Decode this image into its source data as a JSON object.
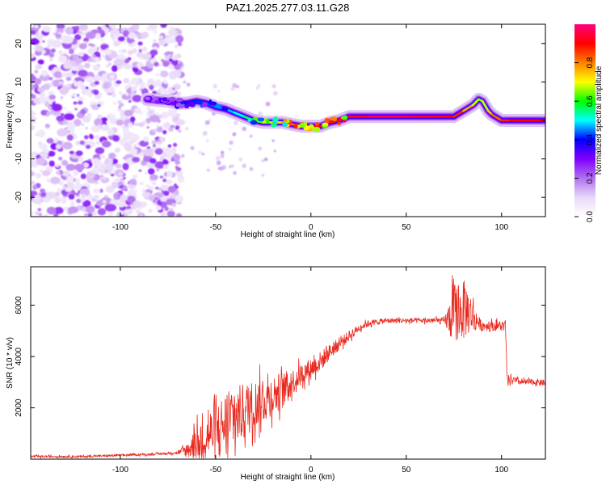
{
  "figure_title": "PAZ1.2025.277.03.11.G28",
  "chart_data": [
    {
      "type": "heatmap",
      "title": "PAZ1.2025.277.03.11.G28",
      "xlabel": "Height of straight line (km)",
      "ylabel": "Frequency (Hz)",
      "xlim": [
        -147,
        123
      ],
      "ylim": [
        -25,
        25
      ],
      "xticks": [
        -100,
        -50,
        0,
        50,
        100
      ],
      "xtick_labels": [
        "-100",
        "-50",
        "0",
        "50",
        "100"
      ],
      "yticks": [
        -20,
        -10,
        0,
        10,
        20
      ],
      "ytick_labels": [
        "-20",
        "-10",
        "0",
        "10",
        "20"
      ],
      "noise_region_x": [
        -147,
        -68
      ],
      "ridge": {
        "x": [
          -86,
          -80,
          -75,
          -70,
          -65,
          -60,
          -55,
          -50,
          -45,
          -40,
          -35,
          -30,
          -25,
          -20,
          -15,
          -10,
          -5,
          0,
          5,
          10,
          15,
          20,
          30,
          40,
          50,
          60,
          70,
          75,
          80,
          85,
          88,
          90,
          93,
          95,
          100,
          105,
          110,
          115,
          123
        ],
        "freq": [
          5.5,
          5.2,
          5.0,
          4.5,
          4.5,
          5.0,
          4.5,
          3.5,
          3.0,
          2.0,
          1.0,
          0.0,
          -0.5,
          -0.5,
          -0.5,
          -1.0,
          -1.5,
          -1.5,
          -1.5,
          -0.5,
          0.0,
          1.0,
          1.0,
          1.0,
          1.0,
          1.0,
          1.0,
          1.0,
          2.5,
          4.0,
          5.5,
          5.0,
          2.5,
          1.5,
          0.0,
          0.0,
          0.0,
          0.0,
          0.0
        ],
        "amplitude": [
          0.3,
          0.32,
          0.35,
          0.35,
          0.4,
          0.42,
          0.42,
          0.45,
          0.45,
          0.5,
          0.52,
          0.6,
          0.65,
          0.7,
          0.75,
          0.8,
          0.85,
          0.9,
          0.92,
          0.9,
          0.88,
          0.9,
          0.95,
          0.95,
          0.95,
          0.93,
          0.92,
          0.9,
          0.85,
          0.7,
          0.65,
          0.65,
          0.7,
          0.8,
          0.85,
          0.9,
          0.9,
          0.9,
          0.9
        ]
      }
    },
    {
      "type": "colorbar",
      "label": "Normalized spectral amplitude",
      "range": [
        0,
        1
      ],
      "ticks": [
        0.0,
        0.2,
        0.4,
        0.6,
        0.8
      ],
      "tick_labels": [
        "0.0",
        "0.2",
        "0.4",
        "0.6",
        "0.8"
      ],
      "colors": [
        "#ffffff",
        "#e8d8f8",
        "#b070f0",
        "#8000ff",
        "#0000ff",
        "#00ffff",
        "#00ff00",
        "#ffff00",
        "#ff8000",
        "#ff0000",
        "#ff0080"
      ]
    },
    {
      "type": "line",
      "xlabel": "Height of straight line (km)",
      "ylabel": "SNR (10 * v/v)",
      "xlim": [
        -147,
        123
      ],
      "ylim": [
        0,
        7500
      ],
      "xticks": [
        -100,
        -50,
        0,
        50,
        100
      ],
      "xtick_labels": [
        "-100",
        "-50",
        "0",
        "50",
        "100"
      ],
      "yticks": [
        2000,
        4000,
        6000
      ],
      "ytick_labels": [
        "2000",
        "4000",
        "6000"
      ],
      "series": [
        {
          "name": "SNR",
          "color": "#e8291e",
          "x": [
            -147,
            -120,
            -100,
            -80,
            -70,
            -65,
            -60,
            -55,
            -50,
            -45,
            -40,
            -35,
            -30,
            -25,
            -20,
            -15,
            -10,
            -5,
            0,
            5,
            10,
            15,
            20,
            25,
            30,
            40,
            50,
            60,
            70,
            73,
            75,
            78,
            80,
            82,
            85,
            88,
            90,
            95,
            100,
            102,
            103,
            105,
            110,
            115,
            120,
            123
          ],
          "y": [
            100,
            100,
            150,
            200,
            250,
            350,
            600,
            900,
            1100,
            1400,
            1600,
            1900,
            2100,
            2300,
            2500,
            2700,
            3000,
            3300,
            3550,
            3800,
            4200,
            4500,
            4800,
            5100,
            5300,
            5400,
            5400,
            5400,
            5400,
            5500,
            5700,
            5700,
            5800,
            5800,
            5600,
            5300,
            5200,
            5200,
            5200,
            5200,
            3000,
            3100,
            3000,
            3000,
            3000,
            2950
          ],
          "noise_amplitude": [
            40,
            40,
            40,
            40,
            50,
            300,
            700,
            900,
            1100,
            1200,
            1200,
            1100,
            1000,
            900,
            800,
            700,
            500,
            450,
            400,
            400,
            300,
            250,
            200,
            150,
            120,
            100,
            100,
            100,
            120,
            800,
            1200,
            1000,
            1200,
            1000,
            600,
            250,
            200,
            200,
            200,
            200,
            150,
            150,
            120,
            120,
            120,
            120
          ]
        }
      ]
    }
  ]
}
